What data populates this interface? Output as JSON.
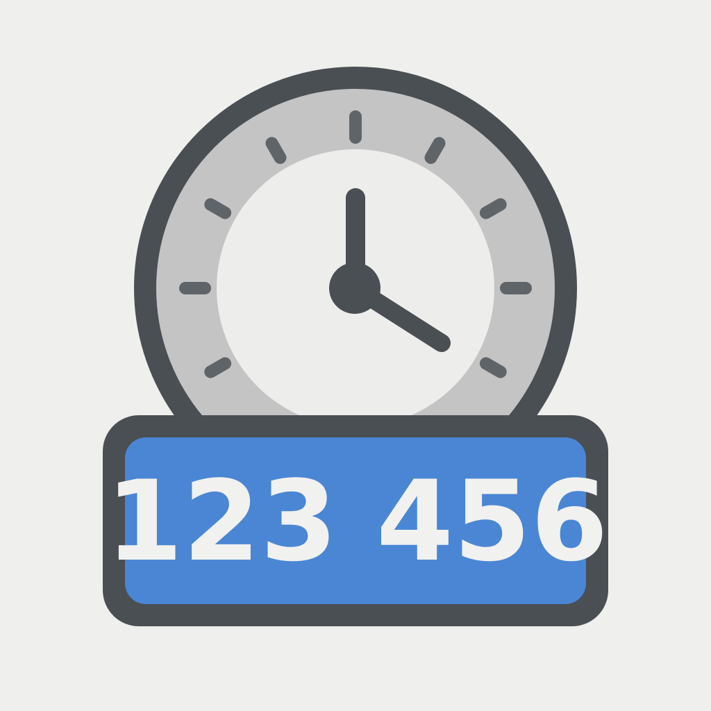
{
  "code": "123 456"
}
